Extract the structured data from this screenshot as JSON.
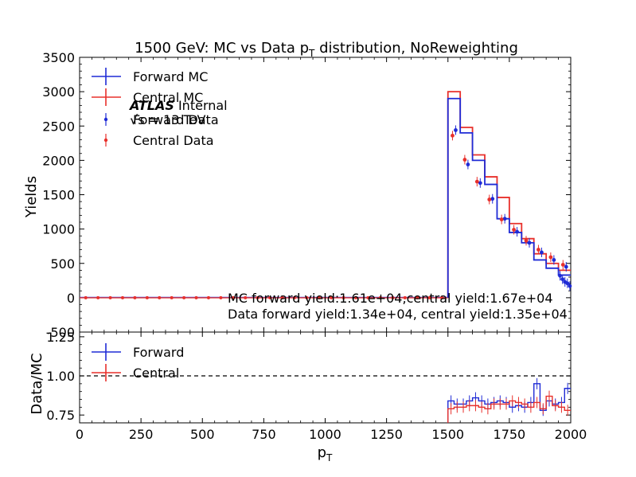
{
  "title": "1500 GeV: MC vs Data p",
  "title_sub": "T",
  "title_tail": " distribution, NoReweighting",
  "colors": {
    "forward": "#1f2bd6",
    "central": "#e8302b"
  },
  "atlas": {
    "bold": "ATLAS",
    "rest": " Internal",
    "energy": "√s = 13 TeV"
  },
  "annotations": {
    "mc": "MC forward yield:1.61e+04,central yield:1.67e+04",
    "data": "Data forward yield:1.34e+04, central yield:1.35e+04"
  },
  "chart_data": [
    {
      "type": "line",
      "drawstyle": "step",
      "title": "1500 GeV: MC vs Data pT distribution, NoReweighting",
      "xlabel": "",
      "ylabel": "Yields",
      "xlim": [
        0,
        2000
      ],
      "ylim": [
        -500,
        3500
      ],
      "yticks": [
        -500,
        0,
        500,
        1000,
        1500,
        2000,
        2500,
        3000,
        3500
      ],
      "legend": "top-left",
      "legend_entries": [
        "Forward MC",
        "Central MC",
        "Forward Data",
        "Central Data"
      ],
      "bin_edges": [
        1500,
        1550,
        1600,
        1650,
        1700,
        1750,
        1800,
        1850,
        1900,
        1950,
        2000
      ],
      "series": [
        {
          "name": "Forward MC",
          "values": [
            2900,
            2400,
            2000,
            1650,
            1150,
            950,
            800,
            550,
            430,
            330
          ]
        },
        {
          "name": "Central MC",
          "values": [
            3000,
            2480,
            2080,
            1760,
            1460,
            1080,
            860,
            640,
            500,
            400
          ]
        },
        {
          "name": "Forward Data",
          "x": [
            1525,
            1575,
            1625,
            1675,
            1725,
            1775,
            1825,
            1875,
            1925,
            1975
          ],
          "values": [
            2440,
            1940,
            1670,
            1440,
            1150,
            960,
            800,
            660,
            550,
            450
          ]
        },
        {
          "name": "Central Data",
          "x": [
            1525,
            1575,
            1625,
            1675,
            1725,
            1775,
            1825,
            1875,
            1925,
            1975
          ],
          "values": [
            2360,
            2010,
            1690,
            1430,
            1140,
            990,
            830,
            700,
            590,
            480
          ]
        },
        {
          "name": "Forward Data",
          "x": [
            1950,
            1960,
            1970,
            1980,
            1990
          ],
          "values": [
            320,
            270,
            230,
            210,
            170
          ]
        }
      ],
      "low_points_x": [
        25,
        75,
        125,
        175,
        225,
        275,
        325,
        375,
        425,
        475,
        525,
        575,
        625,
        675,
        725,
        775,
        825,
        875,
        925,
        975,
        1025,
        1075,
        1125,
        1175,
        1225,
        1275,
        1325,
        1375,
        1425,
        1475
      ]
    },
    {
      "type": "line",
      "drawstyle": "step",
      "xlabel": "pT",
      "ylabel": "Data/MC",
      "xlim": [
        0,
        2000
      ],
      "ylim": [
        0.7,
        1.28
      ],
      "xticks": [
        0,
        250,
        500,
        750,
        1000,
        1250,
        1500,
        1750,
        2000
      ],
      "yticks": [
        0.75,
        1.0,
        1.25
      ],
      "reference_line": 1.0,
      "legend": "top-left",
      "legend_entries": [
        "Forward",
        "Central"
      ],
      "bin_edges": [
        1500,
        1525,
        1550,
        1575,
        1600,
        1625,
        1650,
        1675,
        1700,
        1725,
        1750,
        1775,
        1800,
        1825,
        1850,
        1875,
        1900,
        1925,
        1950,
        1975,
        2000
      ],
      "series": [
        {
          "name": "Forward",
          "values": [
            0.84,
            0.82,
            0.82,
            0.84,
            0.86,
            0.84,
            0.82,
            0.83,
            0.84,
            0.83,
            0.8,
            0.81,
            0.8,
            0.83,
            0.95,
            0.78,
            0.84,
            0.82,
            0.83,
            0.92
          ]
        },
        {
          "name": "Central",
          "values": [
            0.79,
            0.8,
            0.8,
            0.81,
            0.81,
            0.8,
            0.79,
            0.82,
            0.82,
            0.82,
            0.84,
            0.83,
            0.82,
            0.8,
            0.83,
            0.79,
            0.87,
            0.81,
            0.8,
            0.78
          ]
        }
      ]
    }
  ],
  "labels": {
    "x_main": "p",
    "x_sub": "T",
    "x_ticks": [
      "0",
      "250",
      "500",
      "750",
      "1000",
      "1250",
      "1500",
      "1750",
      "2000"
    ],
    "y_ticks_top": [
      "-500",
      "0",
      "500",
      "1000",
      "1500",
      "2000",
      "2500",
      "3000",
      "3500"
    ],
    "y_ticks_bottom": [
      "0.75",
      "1.00",
      "1.25"
    ],
    "ylabel_top": "Yields",
    "ylabel_bottom": "Data/MC",
    "legend_top": [
      "Forward MC",
      "Central MC",
      "Forward Data",
      "Central Data"
    ],
    "legend_bottom": [
      "Forward",
      "Central"
    ]
  }
}
